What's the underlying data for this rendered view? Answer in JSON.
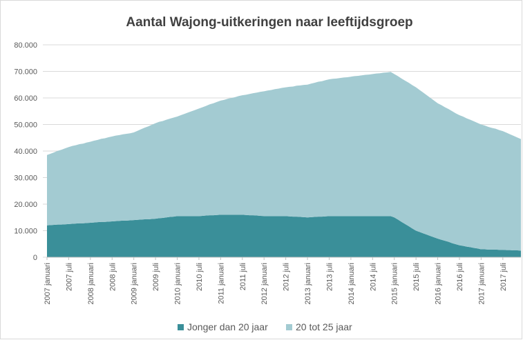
{
  "chart_data": {
    "type": "stacked-area",
    "title": "Aantal Wajong-uitkeringen naar leeftijdsgroep",
    "categories": [
      "2007 januari",
      null,
      null,
      null,
      null,
      null,
      "2007 juli",
      null,
      null,
      null,
      null,
      null,
      "2008 januari",
      null,
      null,
      null,
      null,
      null,
      "2008 juli",
      null,
      null,
      null,
      null,
      null,
      "2009 januari",
      null,
      null,
      null,
      null,
      null,
      "2009 juli",
      null,
      null,
      null,
      null,
      null,
      "2010 januari",
      null,
      null,
      null,
      null,
      null,
      "2010 juli",
      null,
      null,
      null,
      null,
      null,
      "2011 januari",
      null,
      null,
      null,
      null,
      null,
      "2011 juli",
      null,
      null,
      null,
      null,
      null,
      "2012 januari",
      null,
      null,
      null,
      null,
      null,
      "2012 juli",
      null,
      null,
      null,
      null,
      null,
      "2013 januari",
      null,
      null,
      null,
      null,
      null,
      "2013 juli",
      null,
      null,
      null,
      null,
      null,
      "2014 januari",
      null,
      null,
      null,
      null,
      null,
      "2014 juli",
      null,
      null,
      null,
      null,
      null,
      "2015 januari",
      null,
      null,
      null,
      null,
      null,
      "2015 juli",
      null,
      null,
      null,
      null,
      null,
      "2016 januari",
      null,
      null,
      null,
      null,
      null,
      "2016 juli",
      null,
      null,
      null,
      null,
      null,
      "2017 januari",
      null,
      null,
      null,
      null,
      null,
      "2017 juli",
      null,
      null,
      null,
      null,
      null
    ],
    "series": [
      {
        "name": "Jonger dan 20 jaar",
        "color": "#3a8f99",
        "values": [
          12000,
          12100,
          12200,
          12300,
          12300,
          12400,
          12500,
          12600,
          12700,
          12800,
          12800,
          12900,
          13000,
          13100,
          13200,
          13300,
          13300,
          13400,
          13500,
          13600,
          13700,
          13800,
          13800,
          13900,
          14000,
          14100,
          14200,
          14300,
          14300,
          14400,
          14500,
          14700,
          14800,
          15000,
          15200,
          15300,
          15500,
          15500,
          15500,
          15500,
          15500,
          15500,
          15500,
          15600,
          15700,
          15800,
          15800,
          15900,
          16000,
          16000,
          16000,
          16000,
          16000,
          16000,
          16000,
          15900,
          15800,
          15800,
          15700,
          15600,
          15500,
          15500,
          15500,
          15500,
          15500,
          15500,
          15500,
          15400,
          15300,
          15300,
          15200,
          15100,
          15000,
          15100,
          15200,
          15300,
          15300,
          15400,
          15500,
          15500,
          15500,
          15500,
          15500,
          15500,
          15500,
          15500,
          15500,
          15500,
          15500,
          15500,
          15500,
          15500,
          15500,
          15500,
          15500,
          15500,
          15000,
          14200,
          13300,
          12500,
          11700,
          10800,
          10000,
          9500,
          9000,
          8500,
          8000,
          7500,
          7000,
          6600,
          6200,
          5800,
          5300,
          4900,
          4500,
          4300,
          4000,
          3800,
          3500,
          3300,
          3000,
          3000,
          2900,
          2900,
          2900,
          2800,
          2800,
          2700,
          2700,
          2600,
          2600,
          2500
        ]
      },
      {
        "name": "20 tot 25 jaar",
        "color": "#a3cbd2",
        "values": [
          26500,
          26900,
          27300,
          27800,
          28200,
          28600,
          29000,
          29300,
          29500,
          29800,
          30000,
          30300,
          30500,
          30800,
          31000,
          31300,
          31500,
          31800,
          32000,
          32200,
          32300,
          32500,
          32700,
          32800,
          33000,
          33500,
          34000,
          34500,
          35000,
          35500,
          36000,
          36300,
          36500,
          36800,
          37000,
          37300,
          37500,
          38000,
          38500,
          39000,
          39500,
          40000,
          40500,
          40900,
          41300,
          41800,
          42200,
          42600,
          43000,
          43300,
          43700,
          44000,
          44300,
          44700,
          45000,
          45300,
          45700,
          46000,
          46300,
          46700,
          47000,
          47300,
          47500,
          47800,
          48000,
          48300,
          48500,
          48800,
          49000,
          49300,
          49500,
          49800,
          50000,
          50300,
          50500,
          50800,
          51000,
          51300,
          51500,
          51700,
          51800,
          52000,
          52200,
          52300,
          52500,
          52700,
          52800,
          53000,
          53200,
          53300,
          53500,
          53700,
          53800,
          54000,
          54100,
          54300,
          54000,
          54000,
          54000,
          54000,
          54000,
          54000,
          54000,
          53500,
          53000,
          52500,
          52000,
          51500,
          51000,
          50700,
          50300,
          50000,
          49700,
          49300,
          49000,
          48700,
          48300,
          48000,
          47700,
          47300,
          47000,
          46600,
          46200,
          45800,
          45500,
          45100,
          44700,
          44200,
          43600,
          43100,
          42500,
          42000
        ]
      }
    ],
    "ylim": [
      0,
      80000
    ],
    "yticks": [
      0,
      {
        "value": 10000,
        "label": "10.000"
      },
      {
        "value": 20000,
        "label": "20.000"
      },
      {
        "value": 30000,
        "label": "30.000"
      },
      {
        "value": 40000,
        "label": "40.000"
      },
      {
        "value": 50000,
        "label": "50.000"
      },
      {
        "value": 60000,
        "label": "60.000"
      },
      {
        "value": 70000,
        "label": "70.000"
      },
      {
        "value": 80000,
        "label": "80.000"
      }
    ],
    "grid": true
  }
}
